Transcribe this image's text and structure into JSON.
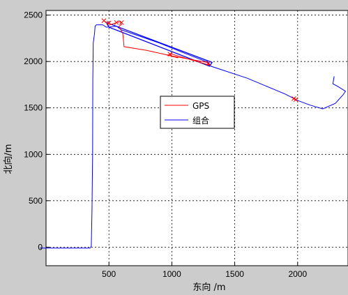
{
  "chart_data": {
    "type": "line",
    "xlabel": "东向 /m",
    "ylabel": "北向/m",
    "xlim": [
      0,
      2400
    ],
    "ylim": [
      -200,
      2550
    ],
    "xticks": [
      500,
      1000,
      1500,
      2000
    ],
    "yticks": [
      0,
      500,
      1000,
      1500,
      2000,
      2500
    ],
    "grid": true,
    "legend_position": "center",
    "series": [
      {
        "name": "GPS",
        "color": "#ff0000",
        "points": [
          [
            460,
            2440
          ],
          [
            490,
            2410
          ],
          [
            520,
            2400
          ],
          [
            560,
            2420
          ],
          [
            590,
            2430
          ],
          [
            600,
            2400
          ],
          [
            580,
            2380
          ],
          [
            610,
            2300
          ],
          [
            620,
            2160
          ],
          [
            800,
            2120
          ],
          [
            1000,
            2060
          ],
          [
            1280,
            1990
          ],
          [
            1300,
            1960
          ],
          [
            1000,
            2080
          ],
          [
            960,
            2070
          ],
          [
            1050,
            2040
          ]
        ],
        "markers": [
          [
            460,
            2440
          ],
          [
            500,
            2415
          ],
          [
            560,
            2420
          ],
          [
            600,
            2420
          ],
          [
            985,
            2080
          ],
          [
            1290,
            1980
          ],
          [
            1970,
            1600
          ],
          [
            1985,
            1590
          ]
        ]
      },
      {
        "name": "组合",
        "color": "#0000ff",
        "points": [
          [
            -50,
            -10
          ],
          [
            350,
            -10
          ],
          [
            360,
            10
          ],
          [
            365,
            400
          ],
          [
            370,
            1000
          ],
          [
            372,
            1800
          ],
          [
            375,
            2200
          ],
          [
            385,
            2300
          ],
          [
            390,
            2380
          ],
          [
            400,
            2395
          ],
          [
            450,
            2395
          ],
          [
            480,
            2370
          ],
          [
            560,
            2380
          ],
          [
            600,
            2340
          ],
          [
            900,
            2200
          ],
          [
            1100,
            2090
          ],
          [
            1290,
            1990
          ],
          [
            1310,
            1950
          ],
          [
            1600,
            1820
          ],
          [
            1900,
            1650
          ],
          [
            2000,
            1580
          ],
          [
            2100,
            1530
          ],
          [
            2200,
            1490
          ],
          [
            2300,
            1550
          ],
          [
            2360,
            1640
          ],
          [
            2380,
            1680
          ],
          [
            2320,
            1730
          ],
          [
            2280,
            1760
          ],
          [
            2290,
            1840
          ]
        ],
        "closed_loop": [
          [
            480,
            2420
          ],
          [
            1320,
            1990
          ],
          [
            1300,
            1950
          ],
          [
            500,
            2370
          ]
        ]
      }
    ]
  }
}
